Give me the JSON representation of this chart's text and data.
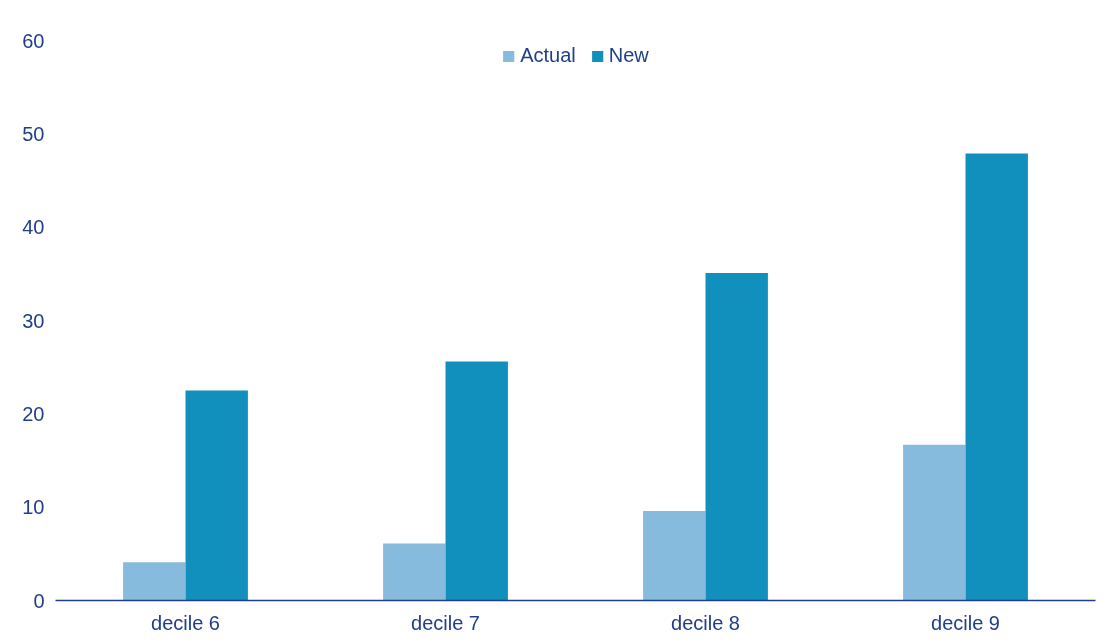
{
  "chart_data": {
    "type": "bar",
    "categories": [
      "decile 6",
      "decile 7",
      "decile 8",
      "decile 9"
    ],
    "series": [
      {
        "name": "Actual",
        "color": "#87bbdd",
        "values": [
          4.1,
          6.1,
          9.6,
          16.7
        ]
      },
      {
        "name": "New",
        "color": "#118fbd",
        "values": [
          22.5,
          25.6,
          35.1,
          47.9
        ]
      }
    ],
    "ylim": [
      0,
      60
    ],
    "yticks": [
      0,
      10,
      20,
      30,
      40,
      50,
      60
    ],
    "grid": false,
    "legend": "top"
  }
}
